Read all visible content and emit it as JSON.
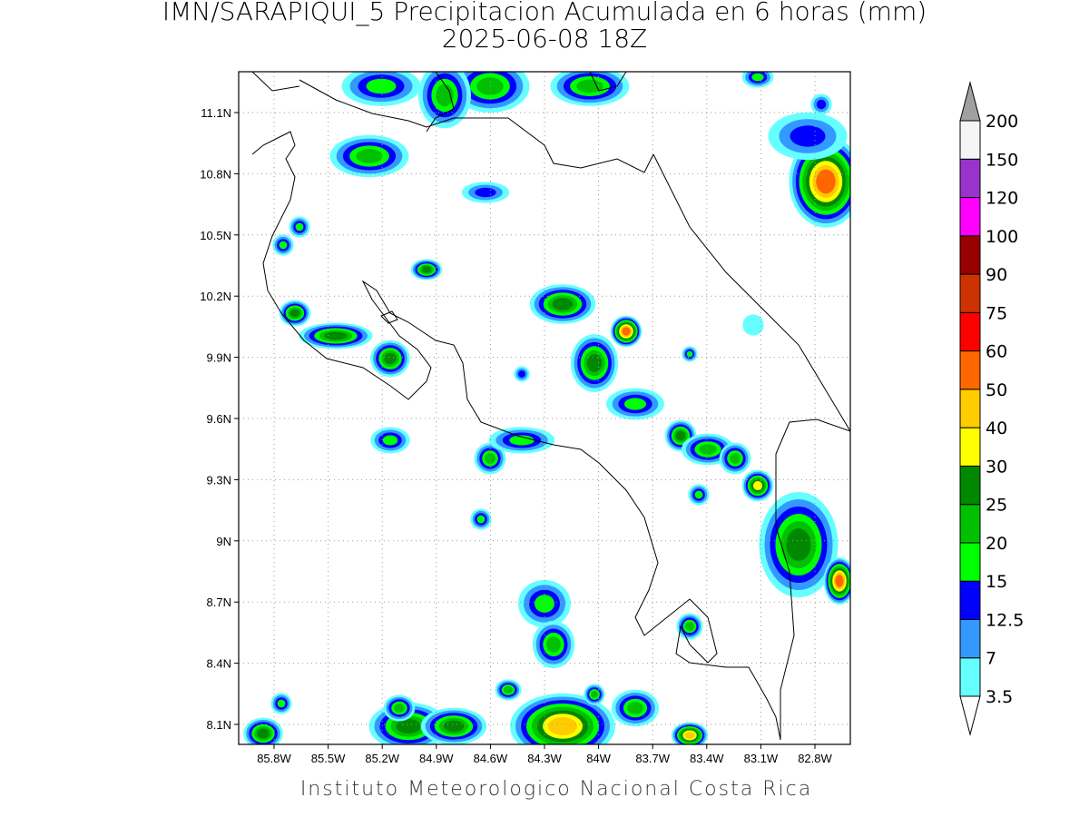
{
  "title": "IMN/SARAPIQUI_5 Precipitacion Acumulada en 6 horas (mm)",
  "subtitle": "2025-06-08 18Z",
  "map": {
    "lat_ticks": [
      "11.1N",
      "10.8N",
      "10.5N",
      "10.2N",
      "9.9N",
      "9.6N",
      "9.3N",
      "9N",
      "8.7N",
      "8.4N",
      "8.1N"
    ],
    "lon_ticks": [
      "85.8W",
      "85.5W",
      "85.2W",
      "84.9W",
      "84.6W",
      "84.3W",
      "84W",
      "83.7W",
      "83.4W",
      "83.1W",
      "82.8W"
    ]
  },
  "colorbar": {
    "levels": [
      3.5,
      7,
      12.5,
      15,
      20,
      25,
      30,
      40,
      50,
      60,
      75,
      90,
      100,
      120,
      150,
      200
    ],
    "colors": [
      "#66ffff",
      "#3399ff",
      "#0000ff",
      "#00ff00",
      "#00c000",
      "#008800",
      "#ffff00",
      "#ffcc00",
      "#ff6600",
      "#ff0000",
      "#cc3300",
      "#990000",
      "#ff00ff",
      "#9933cc",
      "#f5f5f5"
    ],
    "over_color": "#a0a0a0"
  },
  "footer": "Instituto Meteorologico Nacional Costa Rica"
}
